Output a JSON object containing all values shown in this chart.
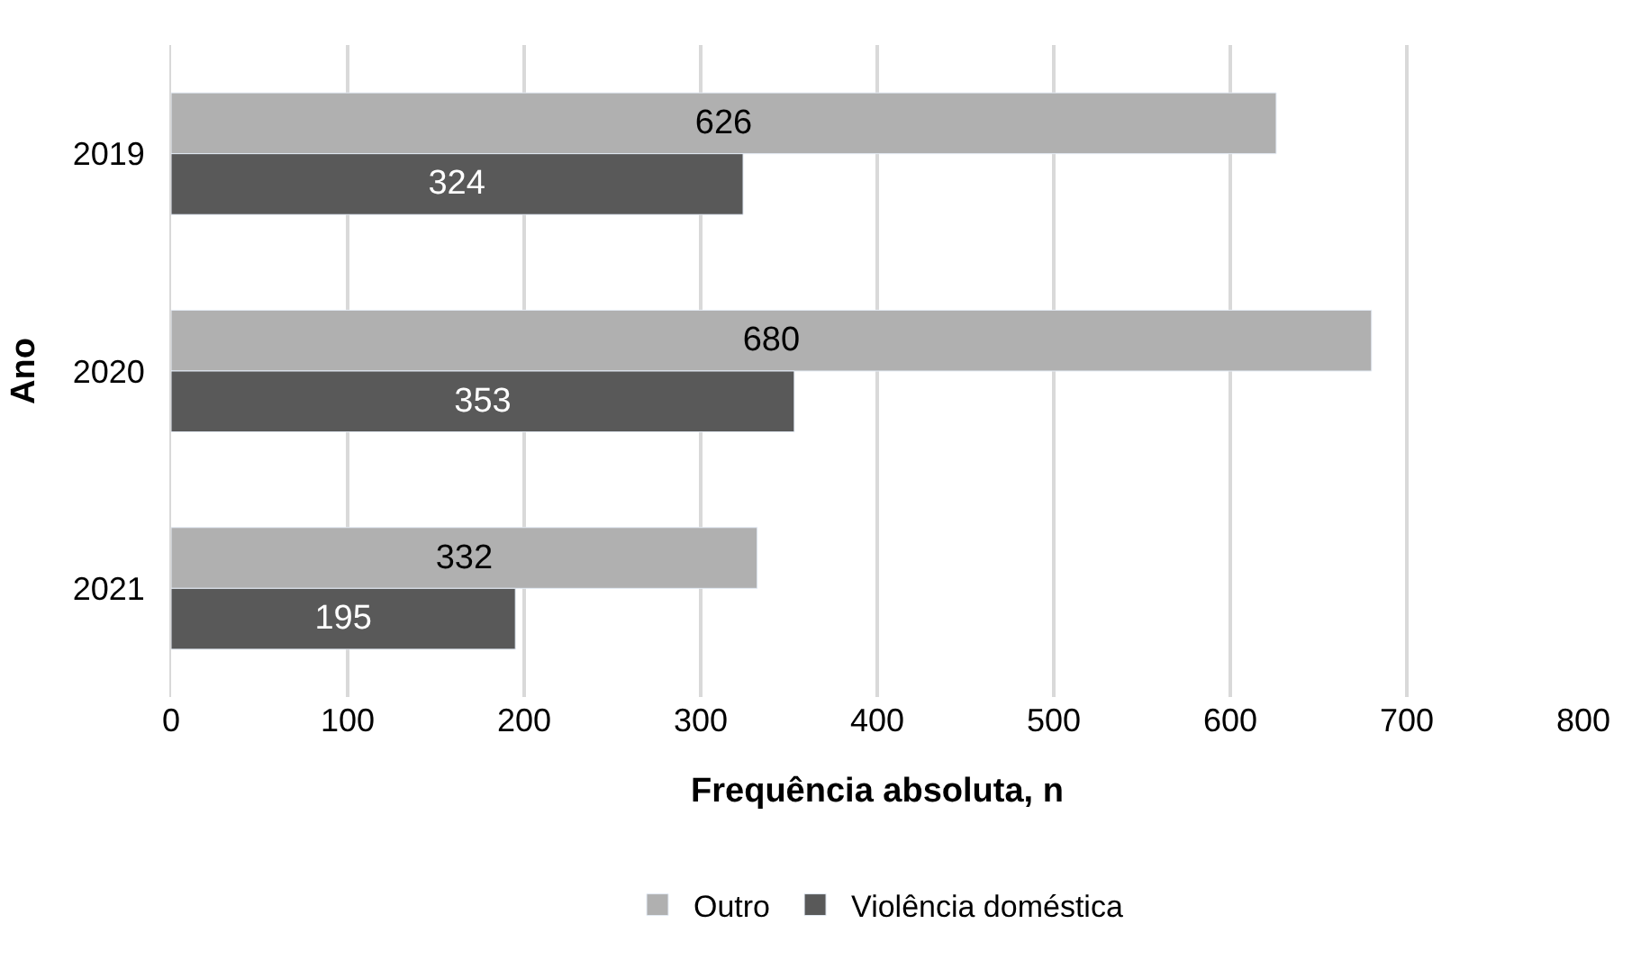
{
  "chart_data": {
    "type": "bar",
    "orientation": "horizontal",
    "xlabel": "Frequência absoluta, n",
    "ylabel": "Ano",
    "categories": [
      "2019",
      "2020",
      "2021"
    ],
    "series": [
      {
        "name": "Outro",
        "color": "#b0b0b0",
        "values": [
          626,
          680,
          332
        ]
      },
      {
        "name": "Violência doméstica",
        "color": "#595959",
        "values": [
          324,
          353,
          195
        ]
      }
    ],
    "xlim": [
      0,
      800
    ],
    "xticks": [
      0,
      100,
      200,
      300,
      400,
      500,
      600,
      700,
      800
    ],
    "grid": "x",
    "legend": "bottom",
    "data_labels": true
  }
}
